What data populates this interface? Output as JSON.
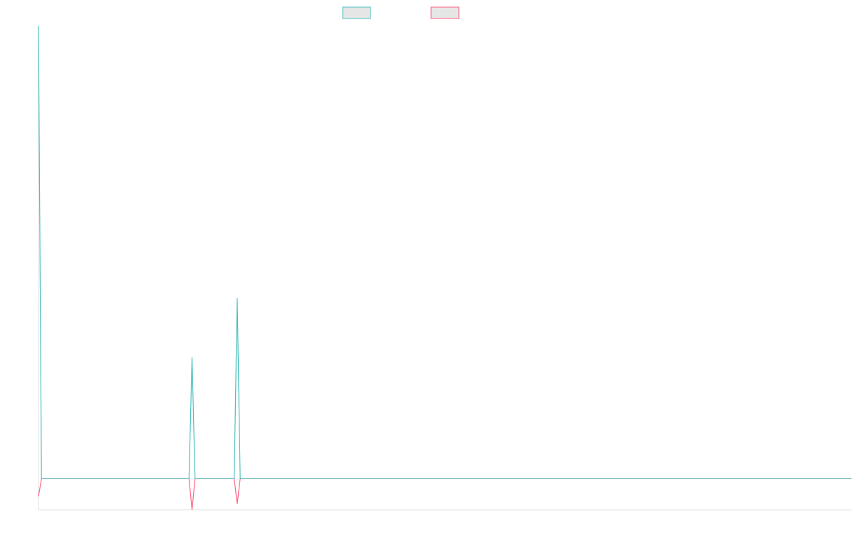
{
  "chart_data": {
    "type": "line",
    "title": "",
    "xlabel": "",
    "ylabel": "",
    "x_count": 271,
    "y_range": [
      -105,
      1530
    ],
    "baseline": 0,
    "legend_position": "top-center",
    "colors": {
      "series_a": "#4bc0c0",
      "series_b": "#ff6384",
      "legend_fill": "#e6e6e6",
      "axis": "#e0e0e0"
    },
    "series": [
      {
        "name": "",
        "color": "#4bc0c0",
        "points": [
          [
            0,
            1530
          ],
          [
            1,
            0
          ],
          [
            50,
            0
          ],
          [
            51,
            410
          ],
          [
            52,
            0
          ],
          [
            65,
            0
          ],
          [
            66,
            610
          ],
          [
            67,
            0
          ],
          [
            270,
            0
          ]
        ]
      },
      {
        "name": "",
        "color": "#ff6384",
        "points": [
          [
            0,
            -60
          ],
          [
            1,
            0
          ],
          [
            50,
            0
          ],
          [
            51,
            -105
          ],
          [
            52,
            0
          ],
          [
            65,
            0
          ],
          [
            66,
            -85
          ],
          [
            67,
            0
          ],
          [
            270,
            0
          ]
        ]
      }
    ]
  }
}
